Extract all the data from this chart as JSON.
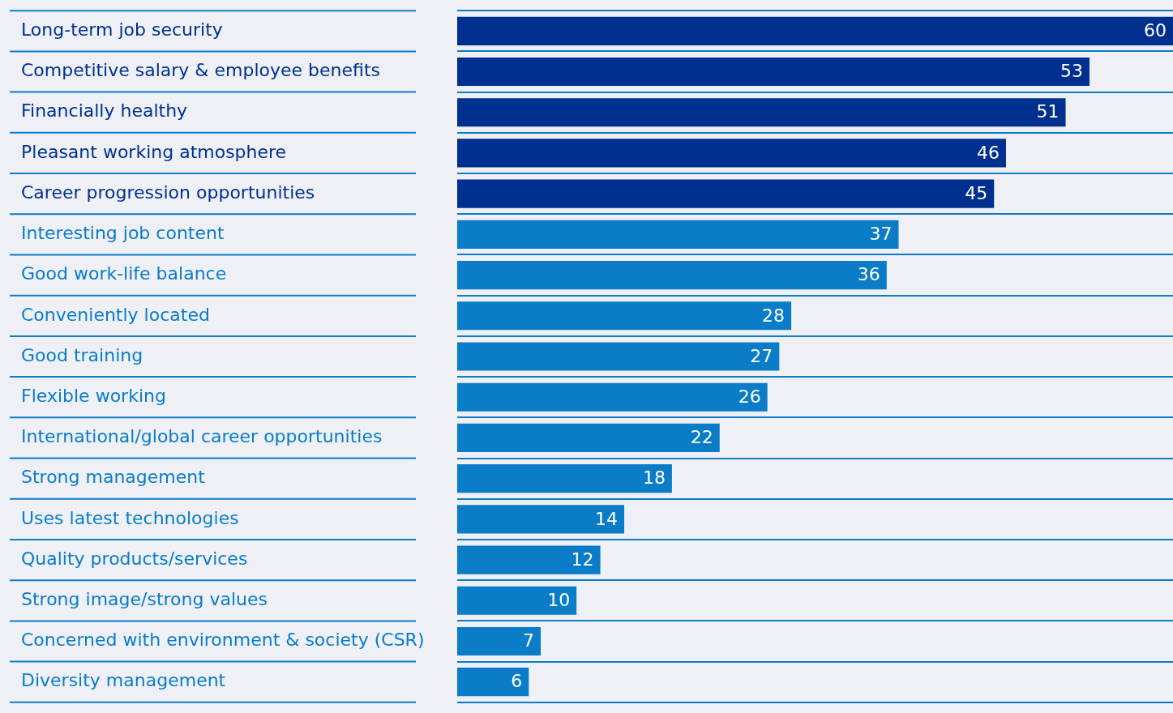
{
  "chart_data": {
    "type": "bar",
    "orientation": "horizontal",
    "categories": [
      "Long-term job security",
      "Competitive salary & employee benefits",
      "Financially healthy",
      "Pleasant working atmosphere",
      "Career progression opportunities",
      "Interesting job content",
      "Good work-life balance",
      "Conveniently located",
      "Good training",
      "Flexible working",
      "International/global career opportunities",
      "Strong management",
      "Uses latest technologies",
      "Quality products/services",
      "Strong image/strong values",
      "Concerned with environment & society (CSR)",
      "Diversity management"
    ],
    "values": [
      60,
      53,
      51,
      46,
      45,
      37,
      36,
      28,
      27,
      26,
      22,
      18,
      14,
      12,
      10,
      7,
      6
    ],
    "colors": [
      "#00308f",
      "#00308f",
      "#00308f",
      "#00308f",
      "#00308f",
      "#0a7cc8",
      "#0a7cc8",
      "#0a7cc8",
      "#0a7cc8",
      "#0a7cc8",
      "#0a7cc8",
      "#0a7cc8",
      "#0a7cc8",
      "#0a7cc8",
      "#0a7cc8",
      "#0a7cc8",
      "#0a7cc8"
    ],
    "data_labels": true,
    "grid": "y",
    "legend": false,
    "tick_labels": "y"
  }
}
